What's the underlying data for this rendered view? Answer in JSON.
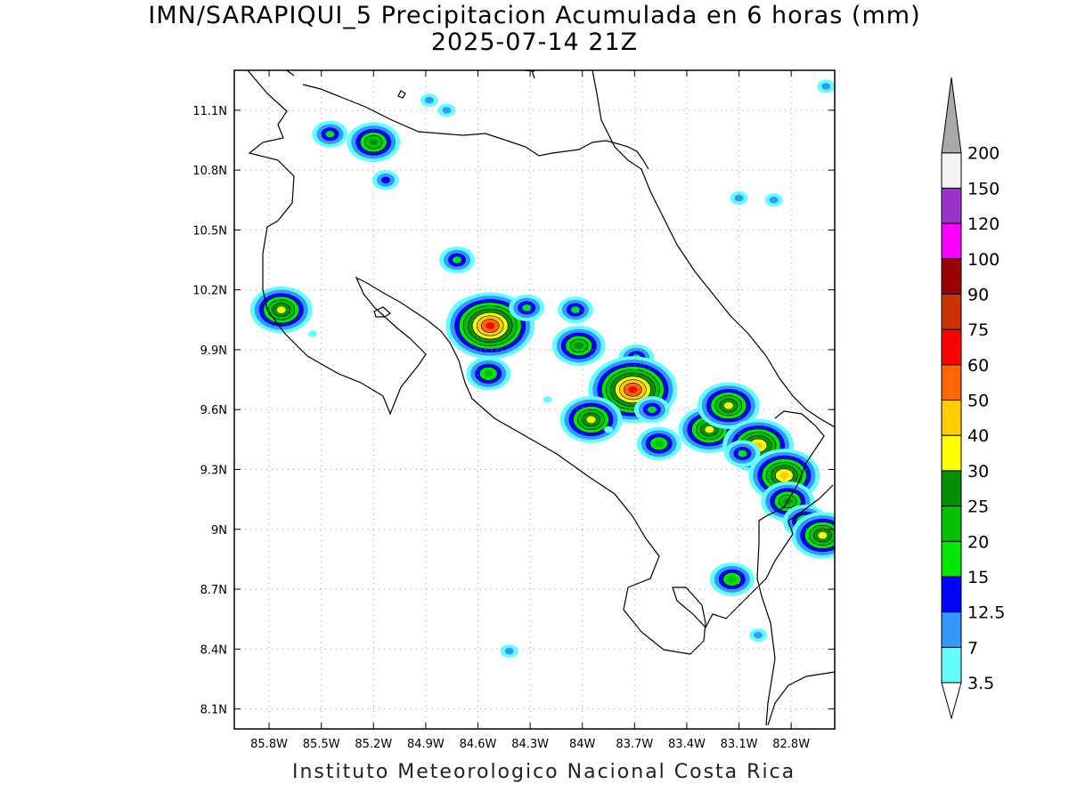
{
  "title": "IMN/SARAPIQUI_5 Precipitacion Acumulada en 6 horas (mm)",
  "subtitle": "2025-07-14 21Z",
  "footer": "Instituto Meteorologico Nacional Costa Rica",
  "map": {
    "lon_range": [
      -86.0,
      -82.55
    ],
    "lat_range": [
      8.0,
      11.3
    ],
    "lon_ticks": [
      {
        "value": -85.8,
        "label": "85.8W"
      },
      {
        "value": -85.5,
        "label": "85.5W"
      },
      {
        "value": -85.2,
        "label": "85.2W"
      },
      {
        "value": -84.9,
        "label": "84.9W"
      },
      {
        "value": -84.6,
        "label": "84.6W"
      },
      {
        "value": -84.3,
        "label": "84.3W"
      },
      {
        "value": -84.0,
        "label": "84W"
      },
      {
        "value": -83.7,
        "label": "83.7W"
      },
      {
        "value": -83.4,
        "label": "83.4W"
      },
      {
        "value": -83.1,
        "label": "83.1W"
      },
      {
        "value": -82.8,
        "label": "82.8W"
      }
    ],
    "lat_ticks": [
      {
        "value": 11.1,
        "label": "11.1N"
      },
      {
        "value": 10.8,
        "label": "10.8N"
      },
      {
        "value": 10.5,
        "label": "10.5N"
      },
      {
        "value": 10.2,
        "label": "10.2N"
      },
      {
        "value": 9.9,
        "label": "9.9N"
      },
      {
        "value": 9.6,
        "label": "9.6N"
      },
      {
        "value": 9.3,
        "label": "9.3N"
      },
      {
        "value": 9.0,
        "label": "9N"
      },
      {
        "value": 8.7,
        "label": "8.7N"
      },
      {
        "value": 8.4,
        "label": "8.4N"
      },
      {
        "value": 8.1,
        "label": "8.1N"
      }
    ],
    "grid": true
  },
  "legend": {
    "levels": [
      "3.5",
      "7",
      "12.5",
      "15",
      "20",
      "25",
      "30",
      "40",
      "50",
      "60",
      "75",
      "90",
      "100",
      "120",
      "150",
      "200"
    ],
    "colors": [
      "#66ffff",
      "#3399ff",
      "#0000ff",
      "#00e600",
      "#00c000",
      "#009000",
      "#ffff00",
      "#ffcc00",
      "#ff6600",
      "#ff0000",
      "#cc3300",
      "#990000",
      "#ff00ff",
      "#9933cc",
      "#f4f4f4",
      "#a8a8a8"
    ]
  },
  "rain_cells": [
    {
      "lon": -85.2,
      "lat": 10.94,
      "level": 5
    },
    {
      "lon": -85.45,
      "lat": 10.98,
      "level": 3
    },
    {
      "lon": -85.13,
      "lat": 10.75,
      "level": 2
    },
    {
      "lon": -84.78,
      "lat": 11.1,
      "level": 1
    },
    {
      "lon": -84.88,
      "lat": 11.15,
      "level": 1
    },
    {
      "lon": -85.73,
      "lat": 10.1,
      "level": 6
    },
    {
      "lon": -85.55,
      "lat": 9.98,
      "level": 0
    },
    {
      "lon": -84.72,
      "lat": 10.35,
      "level": 3
    },
    {
      "lon": -84.63,
      "lat": 10.08,
      "level": 4
    },
    {
      "lon": -84.53,
      "lat": 10.02,
      "level": 9
    },
    {
      "lon": -84.54,
      "lat": 9.78,
      "level": 4
    },
    {
      "lon": -84.32,
      "lat": 10.11,
      "level": 3
    },
    {
      "lon": -84.04,
      "lat": 10.1,
      "level": 3
    },
    {
      "lon": -84.02,
      "lat": 9.92,
      "level": 5
    },
    {
      "lon": -83.69,
      "lat": 9.86,
      "level": 3
    },
    {
      "lon": -83.71,
      "lat": 9.7,
      "level": 9
    },
    {
      "lon": -83.95,
      "lat": 9.55,
      "level": 6
    },
    {
      "lon": -83.6,
      "lat": 9.6,
      "level": 3
    },
    {
      "lon": -83.56,
      "lat": 9.43,
      "level": 4
    },
    {
      "lon": -83.27,
      "lat": 9.5,
      "level": 6
    },
    {
      "lon": -83.16,
      "lat": 9.62,
      "level": 6
    },
    {
      "lon": -82.99,
      "lat": 9.42,
      "level": 7
    },
    {
      "lon": -83.08,
      "lat": 9.38,
      "level": 3
    },
    {
      "lon": -82.84,
      "lat": 9.27,
      "level": 7
    },
    {
      "lon": -82.82,
      "lat": 9.14,
      "level": 5
    },
    {
      "lon": -82.72,
      "lat": 9.04,
      "level": 4
    },
    {
      "lon": -82.62,
      "lat": 8.97,
      "level": 6
    },
    {
      "lon": -83.14,
      "lat": 8.75,
      "level": 4
    },
    {
      "lon": -82.99,
      "lat": 8.47,
      "level": 1
    },
    {
      "lon": -84.42,
      "lat": 8.39,
      "level": 1
    },
    {
      "lon": -82.9,
      "lat": 10.65,
      "level": 1
    },
    {
      "lon": -83.1,
      "lat": 10.66,
      "level": 1
    },
    {
      "lon": -82.6,
      "lat": 11.22,
      "level": 1
    },
    {
      "lon": -83.85,
      "lat": 9.5,
      "level": 0
    },
    {
      "lon": -84.2,
      "lat": 9.65,
      "level": 0
    }
  ]
}
